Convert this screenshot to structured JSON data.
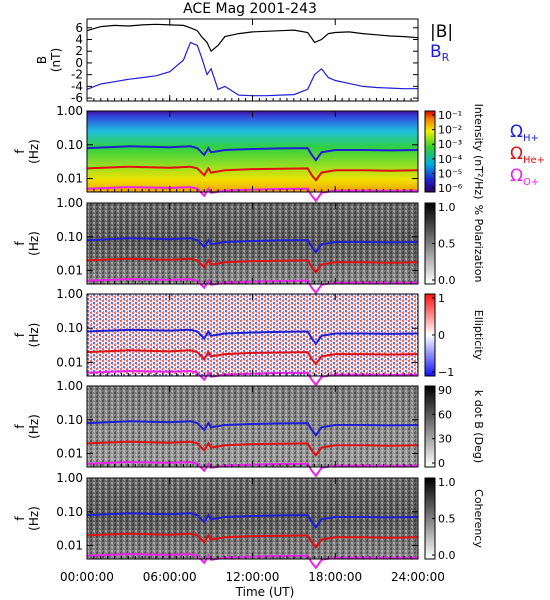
{
  "chart_data": {
    "type": "line",
    "title": "ACE Mag 2001-243",
    "xlabel": "Time (UT)",
    "x_ticks": [
      "00:00:00",
      "06:00:00",
      "12:00:00",
      "18:00:00",
      "24:00:00"
    ],
    "xlim_hours": [
      0,
      24
    ],
    "panels": [
      {
        "kind": "timeseries",
        "ylabel": "B (nT)",
        "y_ticks": [
          "6",
          "4",
          "2",
          "0",
          "-2",
          "-4",
          "-6"
        ],
        "ylim": [
          -6.5,
          7.5
        ],
        "legend": [
          {
            "label": "|B|",
            "color": "#000000"
          },
          {
            "label": "B",
            "sub": "R",
            "color": "#1f1fd6"
          }
        ],
        "series": [
          {
            "name": "|B|",
            "color": "#000000",
            "x": [
              0,
              1,
              2,
              3,
              4,
              5,
              6,
              7,
              7.5,
              8,
              8.3,
              8.7,
              9,
              9.5,
              10,
              11,
              12,
              13,
              14,
              15,
              16,
              16.5,
              17,
              17.5,
              18,
              19,
              20,
              21,
              22,
              23,
              24
            ],
            "y": [
              5.5,
              6.2,
              6.4,
              6.3,
              6.5,
              6.6,
              6.5,
              6.4,
              6.0,
              5.5,
              4.5,
              3.5,
              2.0,
              3.0,
              4.5,
              5.0,
              5.3,
              5.4,
              5.5,
              5.6,
              5.2,
              3.5,
              4.0,
              5.0,
              5.2,
              5.3,
              5.0,
              4.8,
              4.6,
              4.5,
              4.3
            ]
          },
          {
            "name": "B_R",
            "color": "#1f1fd6",
            "x": [
              0,
              1,
              2,
              3,
              4,
              5,
              6,
              7,
              7.5,
              8,
              8.3,
              8.7,
              9,
              9.5,
              10,
              11,
              12,
              13,
              14,
              15,
              16,
              16.5,
              17,
              17.5,
              18,
              19,
              20,
              21,
              22,
              23,
              24
            ],
            "y": [
              -4.5,
              -3.6,
              -3.2,
              -2.8,
              -2.5,
              -2.2,
              -1.5,
              0.5,
              3.5,
              3.0,
              1.0,
              -2.0,
              -1.0,
              -4.5,
              -4.0,
              -5.5,
              -5.6,
              -5.6,
              -5.5,
              -5.4,
              -4.5,
              -2.0,
              -1.0,
              -2.5,
              -3.0,
              -3.5,
              -4.0,
              -4.2,
              -4.3,
              -4.4,
              -4.4
            ]
          }
        ]
      },
      {
        "kind": "spectrogram",
        "ylabel": "f (Hz)",
        "y_ticks": [
          "1.00",
          "0.10",
          "0.01"
        ],
        "ylim": [
          0.004,
          1.0
        ],
        "colorbar": {
          "label": "Intensity (nT²/Hz)",
          "ticks": [
            "10⁻¹",
            "10⁻²",
            "10⁻³",
            "10⁻⁴",
            "10⁻⁵",
            "10⁻⁶"
          ]
        },
        "legend": [
          {
            "label": "Ω",
            "sub": "H+",
            "color": "#1f1fd6"
          },
          {
            "label": "Ω",
            "sub": "He+",
            "color": "#e01010"
          },
          {
            "label": "Ω",
            "sub": "O+",
            "color": "#ee22ee"
          }
        ]
      },
      {
        "kind": "spectrogram",
        "ylabel": "f (Hz)",
        "y_ticks": [
          "1.00",
          "0.10",
          "0.01"
        ],
        "ylim": [
          0.004,
          1.0
        ],
        "colorbar": {
          "label": "% Polarization",
          "ticks": [
            "1.0",
            "0.5",
            "0.0"
          ]
        }
      },
      {
        "kind": "spectrogram",
        "ylabel": "f (Hz)",
        "y_ticks": [
          "1.00",
          "0.10",
          "0.01"
        ],
        "ylim": [
          0.004,
          1.0
        ],
        "colorbar": {
          "label": "Ellipticity",
          "ticks": [
            "1",
            "0",
            "−1"
          ]
        }
      },
      {
        "kind": "spectrogram",
        "ylabel": "f (Hz)",
        "y_ticks": [
          "1.00",
          "0.10",
          "0.01"
        ],
        "ylim": [
          0.004,
          1.0
        ],
        "colorbar": {
          "label": "k dot B (Deg)",
          "ticks": [
            "90",
            "60",
            "30",
            "0"
          ]
        }
      },
      {
        "kind": "spectrogram",
        "ylabel": "f (Hz)",
        "y_ticks": [
          "1.00",
          "0.10",
          "0.01"
        ],
        "ylim": [
          0.004,
          1.0
        ],
        "colorbar": {
          "label": "Coherency",
          "ticks": [
            "1.0",
            "0.5",
            "0.0"
          ]
        }
      }
    ],
    "gyrofrequencies": [
      {
        "name": "ΩH+",
        "color": "#1f1fd6",
        "x": [
          0,
          3,
          6,
          7.5,
          8,
          8.5,
          8.8,
          9,
          10,
          12,
          14,
          16,
          16.3,
          16.6,
          17,
          18,
          20,
          22,
          24
        ],
        "y": [
          0.08,
          0.09,
          0.085,
          0.09,
          0.08,
          0.05,
          0.08,
          0.06,
          0.07,
          0.075,
          0.078,
          0.08,
          0.05,
          0.035,
          0.06,
          0.07,
          0.07,
          0.068,
          0.07
        ]
      },
      {
        "name": "ΩHe+",
        "color": "#e01010",
        "x": [
          0,
          3,
          6,
          7.5,
          8,
          8.5,
          8.8,
          9,
          10,
          12,
          14,
          16,
          16.3,
          16.6,
          17,
          18,
          20,
          22,
          24
        ],
        "y": [
          0.02,
          0.0225,
          0.021,
          0.0225,
          0.02,
          0.0125,
          0.02,
          0.015,
          0.0175,
          0.019,
          0.0195,
          0.02,
          0.0125,
          0.009,
          0.015,
          0.0175,
          0.0175,
          0.017,
          0.0175
        ]
      },
      {
        "name": "ΩO+",
        "color": "#ee22ee",
        "x": [
          0,
          3,
          6,
          7.5,
          8,
          8.5,
          8.8,
          9,
          10,
          12,
          14,
          16,
          16.3,
          16.6,
          17,
          18,
          20,
          22,
          24
        ],
        "y": [
          0.005,
          0.0056,
          0.0053,
          0.0056,
          0.005,
          0.0031,
          0.005,
          0.0038,
          0.0044,
          0.0047,
          0.0049,
          0.005,
          0.0031,
          0.0022,
          0.0038,
          0.0044,
          0.0044,
          0.0043,
          0.0044
        ]
      }
    ]
  }
}
